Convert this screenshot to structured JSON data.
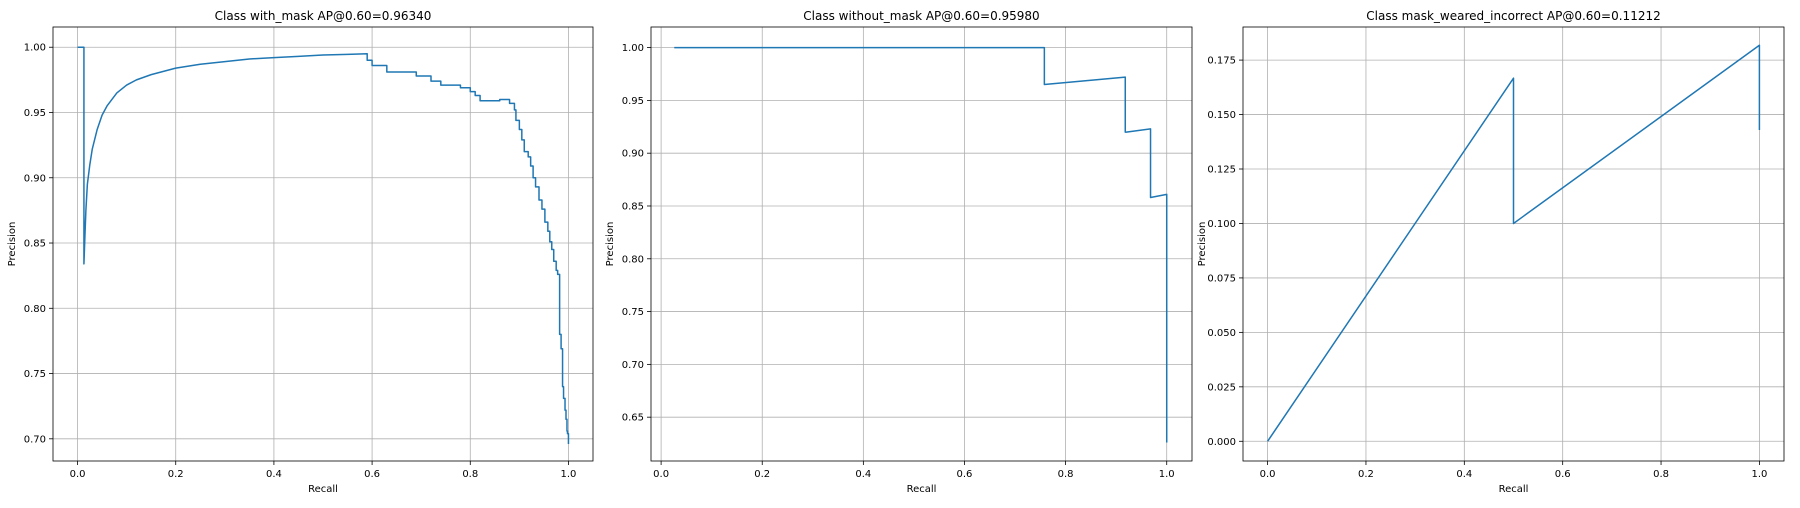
{
  "chart_data": [
    {
      "type": "line",
      "title": "Class with_mask AP@0.60=0.96340",
      "xlabel": "Recall",
      "ylabel": "Precision",
      "xlim": [
        -0.05,
        1.05
      ],
      "ylim": [
        0.683,
        1.0155
      ],
      "xticks": [
        0.0,
        0.2,
        0.4,
        0.6,
        0.8,
        1.0
      ],
      "xtick_labels": [
        "0.0",
        "0.2",
        "0.4",
        "0.6",
        "0.8",
        "1.0"
      ],
      "yticks": [
        0.7,
        0.75,
        0.8,
        0.85,
        0.9,
        0.95,
        1.0
      ],
      "ytick_labels": [
        "0.70",
        "0.75",
        "0.80",
        "0.85",
        "0.90",
        "0.95",
        "1.00"
      ],
      "grid": true,
      "color": "#1f77b4",
      "series": [
        {
          "x": [
            0.0,
            0.003,
            0.006,
            0.009,
            0.013,
            0.013,
            0.015,
            0.017,
            0.02,
            0.025,
            0.03,
            0.04,
            0.05,
            0.06,
            0.08,
            0.1,
            0.12,
            0.15,
            0.2,
            0.25,
            0.3,
            0.35,
            0.4,
            0.45,
            0.5,
            0.55,
            0.59,
            0.59,
            0.6,
            0.6,
            0.63,
            0.63,
            0.69,
            0.69,
            0.72,
            0.72,
            0.74,
            0.74,
            0.78,
            0.78,
            0.8,
            0.8,
            0.81,
            0.81,
            0.82,
            0.82,
            0.86,
            0.86,
            0.88,
            0.88,
            0.89,
            0.89,
            0.893,
            0.893,
            0.9,
            0.9,
            0.905,
            0.905,
            0.91,
            0.91,
            0.918,
            0.918,
            0.923,
            0.923,
            0.928,
            0.928,
            0.933,
            0.933,
            0.94,
            0.94,
            0.946,
            0.946,
            0.952,
            0.952,
            0.958,
            0.958,
            0.962,
            0.962,
            0.966,
            0.966,
            0.97,
            0.97,
            0.975,
            0.975,
            0.978,
            0.978,
            0.982,
            0.982,
            0.985,
            0.985,
            0.988,
            0.988,
            0.99,
            0.99,
            0.993,
            0.993,
            0.995,
            0.995,
            0.997,
            0.997,
            0.998,
            0.998,
            1.0,
            1.0
          ],
          "y": [
            1.0,
            1.0,
            1.0,
            1.0,
            1.0,
            0.834,
            0.855,
            0.875,
            0.895,
            0.91,
            0.922,
            0.937,
            0.948,
            0.955,
            0.965,
            0.971,
            0.975,
            0.979,
            0.984,
            0.987,
            0.989,
            0.991,
            0.992,
            0.993,
            0.994,
            0.9945,
            0.995,
            0.99,
            0.99,
            0.986,
            0.986,
            0.981,
            0.981,
            0.978,
            0.978,
            0.974,
            0.974,
            0.971,
            0.971,
            0.969,
            0.969,
            0.966,
            0.966,
            0.963,
            0.963,
            0.959,
            0.959,
            0.96,
            0.96,
            0.957,
            0.957,
            0.952,
            0.952,
            0.944,
            0.944,
            0.937,
            0.937,
            0.929,
            0.929,
            0.92,
            0.92,
            0.916,
            0.916,
            0.909,
            0.909,
            0.9,
            0.9,
            0.893,
            0.893,
            0.883,
            0.883,
            0.876,
            0.876,
            0.866,
            0.866,
            0.859,
            0.859,
            0.851,
            0.851,
            0.845,
            0.845,
            0.836,
            0.836,
            0.829,
            0.829,
            0.826,
            0.826,
            0.78,
            0.78,
            0.769,
            0.769,
            0.74,
            0.74,
            0.731,
            0.731,
            0.722,
            0.722,
            0.715,
            0.715,
            0.706,
            0.706,
            0.704,
            0.704,
            0.696
          ]
        }
      ]
    },
    {
      "type": "line",
      "title": "Class without_mask AP@0.60=0.95980",
      "xlabel": "Recall",
      "ylabel": "Precision",
      "xlim": [
        -0.02,
        1.05
      ],
      "ylim": [
        0.6085,
        1.0195
      ],
      "xticks": [
        0.0,
        0.2,
        0.4,
        0.6,
        0.8,
        1.0
      ],
      "xtick_labels": [
        "0.0",
        "0.2",
        "0.4",
        "0.6",
        "0.8",
        "1.0"
      ],
      "yticks": [
        0.65,
        0.7,
        0.75,
        0.8,
        0.85,
        0.9,
        0.95,
        1.0
      ],
      "ytick_labels": [
        "0.65",
        "0.70",
        "0.75",
        "0.80",
        "0.85",
        "0.90",
        "0.95",
        "1.00"
      ],
      "grid": true,
      "color": "#1f77b4",
      "series": [
        {
          "x": [
            0.026,
            0.758,
            0.758,
            0.918,
            0.918,
            0.92,
            0.968,
            0.968,
            1.0,
            1.0
          ],
          "y": [
            1.0,
            1.0,
            0.965,
            0.972,
            0.92,
            0.92,
            0.923,
            0.858,
            0.861,
            0.626
          ]
        }
      ]
    },
    {
      "type": "line",
      "title": "Class mask_weared_incorrect AP@0.60=0.11212",
      "xlabel": "Recall",
      "ylabel": "Precision",
      "xlim": [
        -0.05,
        1.05
      ],
      "ylim": [
        -0.00905,
        0.19019
      ],
      "xticks": [
        0.0,
        0.2,
        0.4,
        0.6,
        0.8,
        1.0
      ],
      "xtick_labels": [
        "0.0",
        "0.2",
        "0.4",
        "0.6",
        "0.8",
        "1.0"
      ],
      "yticks": [
        0.0,
        0.025,
        0.05,
        0.075,
        0.1,
        0.125,
        0.15,
        0.175
      ],
      "ytick_labels": [
        "0.000",
        "0.025",
        "0.050",
        "0.075",
        "0.100",
        "0.125",
        "0.150",
        "0.175"
      ],
      "grid": true,
      "color": "#1f77b4",
      "series": [
        {
          "x": [
            0.0,
            0.5,
            0.5,
            1.0,
            1.0
          ],
          "y": [
            0.0,
            0.1667,
            0.1,
            0.1818,
            0.1429
          ]
        }
      ]
    }
  ]
}
